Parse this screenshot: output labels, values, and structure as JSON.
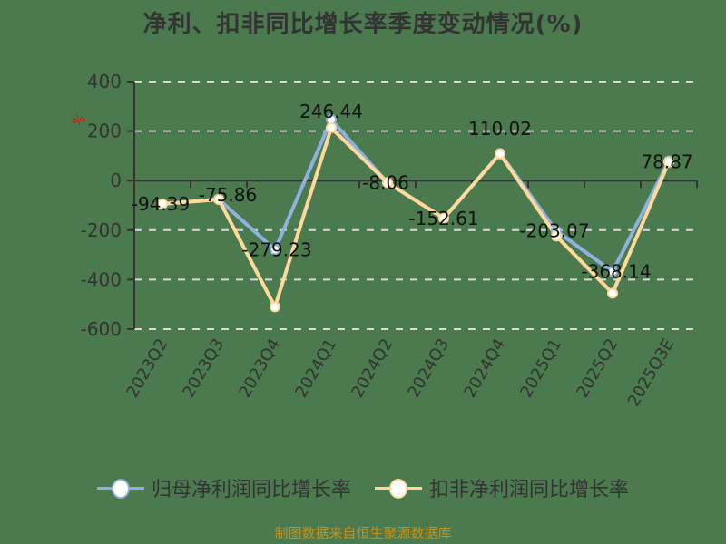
{
  "title": "净利、扣非同比增长率季度变动情况(%)",
  "unit_label": "%",
  "legend": [
    {
      "label": "归母净利润同比增长率",
      "color": "#8fb1e0"
    },
    {
      "label": "扣非净利润同比增长率",
      "color": "#ffd99a"
    }
  ],
  "footer": "制图数据来自恒生聚源数据库",
  "chart_data": {
    "type": "line",
    "title": "净利、扣非同比增长率季度变动情况(%)",
    "xlabel": "",
    "ylabel": "%",
    "ylim": [
      -600,
      400
    ],
    "yticks": [
      400,
      200,
      0,
      -200,
      -400,
      -600
    ],
    "grid": true,
    "legend_position": "bottom",
    "categories": [
      "2023Q2",
      "2023Q3",
      "2023Q4",
      "2024Q1",
      "2024Q2",
      "2024Q3",
      "2024Q4",
      "2025Q1",
      "2025Q2",
      "2025Q3E"
    ],
    "series": [
      {
        "name": "归母净利润同比增长率",
        "color": "#8fb1e0",
        "values": [
          -94.39,
          -75.86,
          -279.23,
          246.44,
          -8.06,
          -152.61,
          110.02,
          -203.07,
          -368.14,
          78.87
        ],
        "labels": [
          "-94.39",
          "-75.86",
          "-279.23",
          "246.44",
          "-8.06",
          "-152.61",
          "110.02",
          "-203.07",
          "-368.14",
          "78.87"
        ]
      },
      {
        "name": "扣非净利润同比增长率",
        "color": "#ffd99a",
        "values": [
          -94,
          -76,
          -510,
          213,
          -8,
          -152,
          108,
          -224,
          -455,
          75
        ]
      }
    ]
  }
}
